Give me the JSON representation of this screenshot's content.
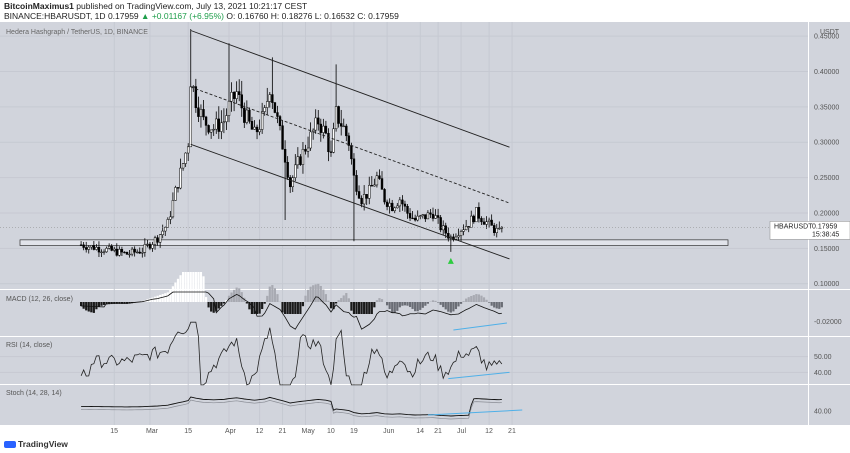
{
  "header": {
    "publisher": "BitcoinMaximus1",
    "published_text": "published on TradingView.com, July 13, 2021 10:21:17 CEST",
    "symbol": "BINANCE:HBARUSDT, 1D",
    "price": "0.17959",
    "change": "▲ +0.01167 (+6.95%)",
    "ohlc": "O: 0.16760 H: 0.18276 L: 0.16532 C: 0.17959"
  },
  "main_pane": {
    "title": "Hedera Hashgraph / TetherUS, 1D, BINANCE",
    "currency": "USDT",
    "price_label_symbol": "HBARUSDT",
    "price_label_value": "0.17959",
    "price_label_time": "15:38:45"
  },
  "indicators": {
    "macd_label": "MACD (12, 26, close)",
    "rsi_label": "RSI (14, close)",
    "stoch_label": "Stoch (14, 28, 14)"
  },
  "footer": {
    "brand": "TradingView"
  },
  "colors": {
    "background": "#d1d4dc",
    "up_candle": "#ffffff",
    "down_candle": "#000000",
    "trend_line": "#222222",
    "divergence": "#4fb0e8",
    "signal_arrow": "#2ecc40"
  },
  "chart_data": {
    "type": "candlestick",
    "title": "Hedera Hashgraph / TetherUS, 1D, BINANCE",
    "yunit": "USDT",
    "y_ticks": [
      "0.45000",
      "0.40000",
      "0.35000",
      "0.30000",
      "0.25000",
      "0.20000",
      "0.15000",
      "0.10000"
    ],
    "ylim": [
      0.0925,
      0.47
    ],
    "x_ticks": [
      "15",
      "Mar",
      "15",
      "Apr",
      "12",
      "21",
      "May",
      "10",
      "19",
      "Jun",
      "14",
      "21",
      "Jul",
      "12",
      "21"
    ],
    "x_ticks_days": [
      -45,
      -31,
      -16,
      0,
      12,
      21,
      30,
      40,
      49,
      62,
      75,
      82,
      91,
      102,
      111
    ],
    "x_days_relative_to": "Apr 1",
    "last_price": 0.17959,
    "macd_ticks": [
      "-0.02000"
    ],
    "rsi_ticks": [
      "50.00",
      "40.00"
    ],
    "stoch_ticks": [
      "40.00"
    ]
  }
}
